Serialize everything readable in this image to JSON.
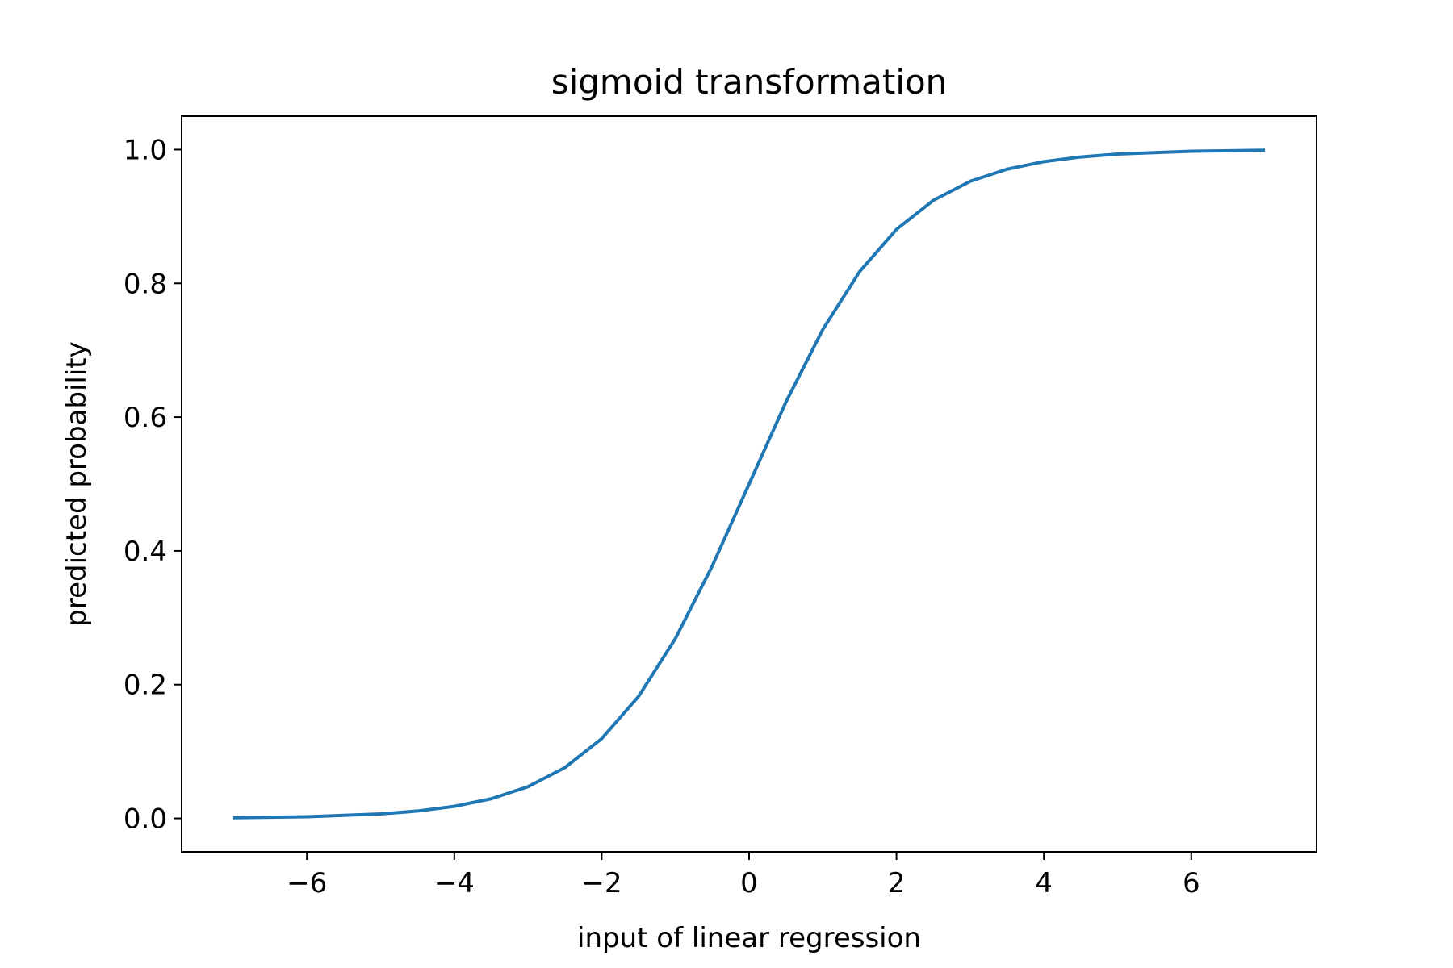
{
  "chart_data": {
    "type": "line",
    "title": "sigmoid transformation",
    "xlabel": "input of linear regression",
    "ylabel": "predicted probability",
    "xlim": [
      -7.7,
      7.7
    ],
    "ylim": [
      -0.05,
      1.05
    ],
    "xticks": [
      -6,
      -4,
      -2,
      0,
      2,
      4,
      6
    ],
    "xtick_labels": [
      "−6",
      "−4",
      "−2",
      "0",
      "2",
      "4",
      "6"
    ],
    "yticks": [
      0.0,
      0.2,
      0.4,
      0.6,
      0.8,
      1.0
    ],
    "ytick_labels": [
      "0.0",
      "0.2",
      "0.4",
      "0.6",
      "0.8",
      "1.0"
    ],
    "grid": false,
    "series": [
      {
        "color": "#1f77b4",
        "x": [
          -7.0,
          -6.0,
          -5.0,
          -4.5,
          -4.0,
          -3.5,
          -3.0,
          -2.5,
          -2.0,
          -1.5,
          -1.0,
          -0.5,
          0.0,
          0.5,
          1.0,
          1.5,
          2.0,
          2.5,
          3.0,
          3.5,
          4.0,
          4.5,
          5.0,
          6.0,
          7.0
        ],
        "y": [
          0.0009,
          0.0025,
          0.0067,
          0.011,
          0.018,
          0.0293,
          0.0474,
          0.0759,
          0.1192,
          0.1824,
          0.2689,
          0.3775,
          0.5,
          0.6225,
          0.7311,
          0.8176,
          0.8808,
          0.9241,
          0.9526,
          0.9707,
          0.982,
          0.989,
          0.9933,
          0.9975,
          0.9991
        ]
      }
    ]
  }
}
